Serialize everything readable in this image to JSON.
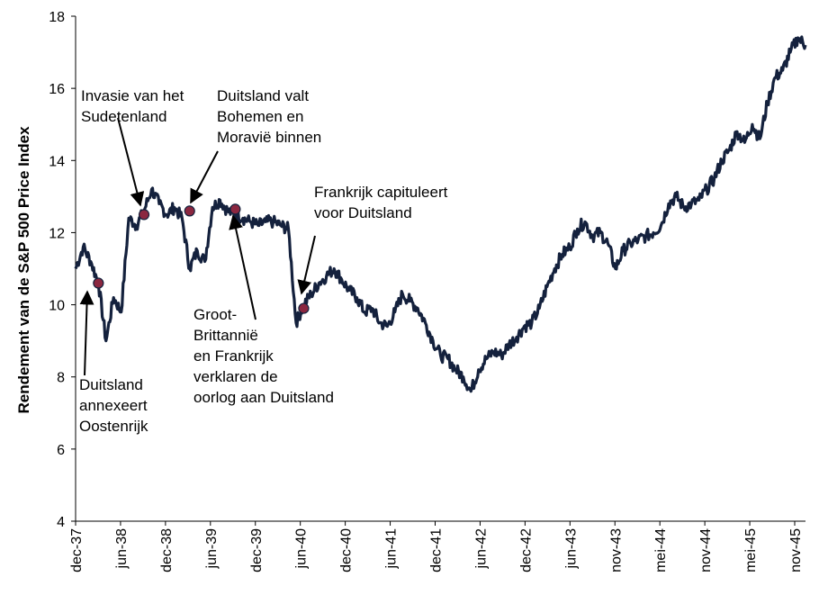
{
  "chart_data": {
    "type": "line",
    "title": "",
    "xlabel": "",
    "ylabel": "Rendement van de S&P 500 Price Index",
    "ylim": [
      4,
      18
    ],
    "y_ticks": [
      4,
      6,
      8,
      10,
      12,
      14,
      16,
      18
    ],
    "x_tick_labels": [
      "dec-37",
      "jun-38",
      "dec-38",
      "jun-39",
      "dec-39",
      "jun-40",
      "dec-40",
      "jun-41",
      "dec-41",
      "jun-42",
      "dec-42",
      "jun-43",
      "nov-43",
      "mei-44",
      "nov-44",
      "mei-45",
      "nov-45"
    ],
    "grid": false,
    "legend": "none",
    "line_color": "#14213d",
    "marker_color": "#8b2740",
    "series": [
      {
        "x": [
          "dec-37",
          "jan-38",
          "feb-38",
          "mrt-38",
          "apr-38",
          "mei-38",
          "jun-38",
          "jul-38",
          "aug-38",
          "sep-38",
          "okt-38",
          "nov-38",
          "dec-38",
          "jan-39",
          "feb-39",
          "mrt-39",
          "apr-39",
          "mei-39",
          "jun-39",
          "jul-39",
          "aug-39",
          "sep-39",
          "okt-39",
          "nov-39",
          "dec-39",
          "jan-40",
          "feb-40",
          "mrt-40",
          "apr-40",
          "mei-40",
          "jun-40",
          "jul-40",
          "aug-40",
          "sep-40",
          "okt-40",
          "nov-40",
          "dec-40",
          "jan-41",
          "feb-41",
          "mrt-41",
          "apr-41",
          "mei-41",
          "jun-41",
          "jul-41",
          "aug-41",
          "sep-41",
          "okt-41",
          "nov-41",
          "dec-41",
          "jan-42",
          "feb-42",
          "mrt-42",
          "apr-42",
          "mei-42",
          "jun-42",
          "jul-42",
          "aug-42",
          "sep-42",
          "okt-42",
          "nov-42",
          "dec-42",
          "jan-43",
          "feb-43",
          "mrt-43",
          "apr-43",
          "mei-43",
          "jun-43",
          "jul-43",
          "aug-43",
          "sep-43",
          "okt-43",
          "nov-43",
          "dec-43",
          "jan-44",
          "feb-44",
          "mrt-44",
          "apr-44",
          "mei-44",
          "jun-44",
          "jul-44",
          "aug-44",
          "sep-44",
          "okt-44",
          "nov-44",
          "dec-44",
          "jan-45",
          "feb-45",
          "mrt-45",
          "apr-45",
          "mei-45",
          "jun-45",
          "jul-45",
          "aug-45",
          "sep-45",
          "okt-45",
          "nov-45",
          "dec-45"
        ],
        "values": [
          11.0,
          11.6,
          11.2,
          10.6,
          9.0,
          10.2,
          9.8,
          12.4,
          12.2,
          12.6,
          13.2,
          12.8,
          12.5,
          12.7,
          12.4,
          11.0,
          11.5,
          11.2,
          12.7,
          12.9,
          12.6,
          12.5,
          12.4,
          12.3,
          12.2,
          12.3,
          12.3,
          12.2,
          12.1,
          9.5,
          10.0,
          10.3,
          10.6,
          10.8,
          11.0,
          10.7,
          10.4,
          10.2,
          9.8,
          9.9,
          9.5,
          9.4,
          9.8,
          10.3,
          10.1,
          9.9,
          9.5,
          9.0,
          8.6,
          8.5,
          8.2,
          8.0,
          7.6,
          8.2,
          8.5,
          8.7,
          8.6,
          8.9,
          9.1,
          9.4,
          9.5,
          9.9,
          10.5,
          11.0,
          11.4,
          11.6,
          12.1,
          12.3,
          11.9,
          12.0,
          11.7,
          11.0,
          11.5,
          11.7,
          11.8,
          11.9,
          12.0,
          12.2,
          12.8,
          13.0,
          12.7,
          12.8,
          12.9,
          13.2,
          13.5,
          14.0,
          14.3,
          14.8,
          14.5,
          15.0,
          14.6,
          15.6,
          16.3,
          16.5,
          17.0,
          17.4,
          17.2
        ]
      }
    ],
    "annotations": [
      {
        "lines": [
          "Invasie van het",
          "Sudetenland"
        ],
        "date": "sep-38",
        "value": 12.5
      },
      {
        "lines": [
          "Duitsland valt",
          "Bohemen en",
          "Moravië binnen"
        ],
        "date": "mrt-39",
        "value": 12.6
      },
      {
        "lines": [
          "Frankrijk capituleert",
          "voor Duitsland"
        ],
        "date": "jun-40",
        "value": 9.9
      },
      {
        "lines": [
          "Groot-",
          "Brittannië",
          "en Frankrijk",
          "verklaren de",
          "oorlog aan Duitsland"
        ],
        "date": "sep-39",
        "value": 12.65
      },
      {
        "lines": [
          "Duitsland",
          "annexeert",
          "Oostenrijk"
        ],
        "date": "mrt-38",
        "value": 10.6
      }
    ]
  }
}
